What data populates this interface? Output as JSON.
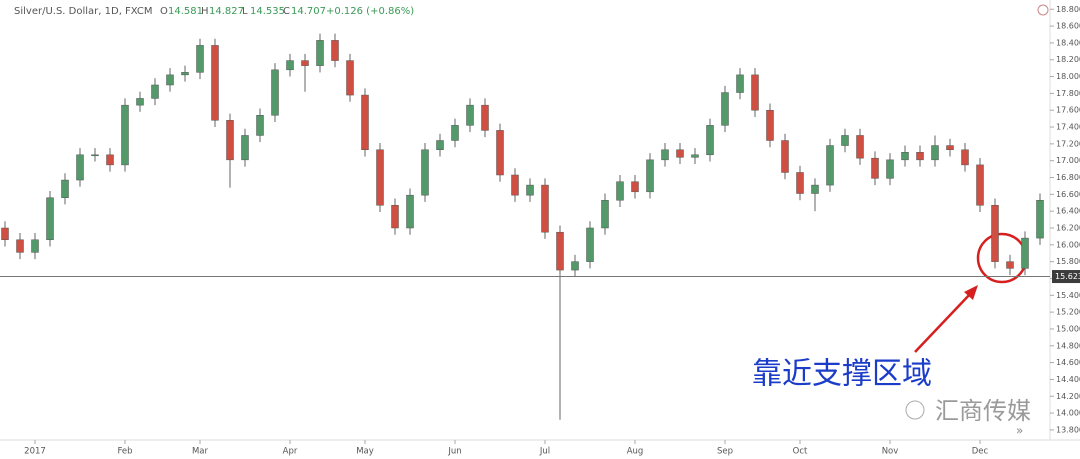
{
  "header": {
    "symbol": "Silver/U.S. Dollar, 1D, FXCM",
    "ohlc": [
      "O",
      "14.581",
      "H",
      "14.827",
      "L",
      "14.535",
      "C",
      "14.707"
    ],
    "change": "+0.126 (+0.86%)"
  },
  "chart_data": {
    "type": "candlestick",
    "up_color": "#53996a",
    "down_color": "#cf4f42",
    "categories": [
      null,
      null,
      "2017",
      null,
      null,
      null,
      null,
      null,
      "Feb",
      null,
      null,
      null,
      null,
      "Mar",
      null,
      null,
      null,
      null,
      null,
      "Apr",
      null,
      null,
      null,
      null,
      "May",
      null,
      null,
      null,
      null,
      null,
      "Jun",
      null,
      null,
      null,
      null,
      null,
      "Jul",
      null,
      null,
      null,
      null,
      null,
      "Aug",
      null,
      null,
      null,
      null,
      null,
      "Sep",
      null,
      null,
      null,
      null,
      "Oct",
      null,
      null,
      null,
      null,
      null,
      "Nov",
      null,
      null,
      null,
      null,
      null,
      "Dec",
      null,
      null,
      null,
      null
    ],
    "open": [
      16.2,
      16.06,
      15.91,
      16.06,
      16.56,
      16.77,
      17.07,
      17.07,
      16.95,
      17.66,
      17.74,
      17.9,
      18.02,
      18.05,
      18.37,
      17.48,
      17.01,
      17.3,
      17.54,
      18.08,
      18.19,
      18.13,
      18.43,
      18.19,
      17.78,
      17.13,
      16.47,
      16.2,
      16.59,
      17.13,
      17.24,
      17.42,
      17.66,
      17.36,
      16.83,
      16.59,
      16.71,
      16.15,
      15.7,
      15.8,
      16.2,
      16.53,
      16.75,
      16.63,
      17.01,
      17.13,
      17.04,
      17.07,
      17.42,
      17.81,
      18.02,
      17.6,
      17.24,
      16.86,
      16.61,
      16.71,
      17.18,
      17.3,
      17.03,
      16.79,
      17.01,
      17.1,
      17.01,
      17.18,
      17.13,
      16.95,
      16.47,
      15.8,
      15.72,
      16.08
    ],
    "high": [
      16.28,
      16.14,
      16.14,
      16.64,
      16.85,
      17.15,
      17.15,
      17.15,
      17.74,
      17.82,
      17.98,
      18.1,
      18.13,
      18.45,
      18.45,
      17.56,
      17.38,
      17.62,
      18.16,
      18.27,
      18.27,
      18.51,
      18.51,
      18.27,
      17.86,
      17.21,
      16.55,
      16.67,
      17.21,
      17.32,
      17.5,
      17.74,
      17.74,
      17.44,
      16.91,
      16.79,
      16.79,
      16.23,
      15.88,
      16.28,
      16.61,
      16.83,
      16.83,
      17.09,
      17.21,
      17.21,
      17.15,
      17.5,
      17.89,
      18.1,
      18.1,
      17.68,
      17.32,
      16.94,
      16.79,
      17.26,
      17.38,
      17.38,
      17.11,
      17.09,
      17.18,
      17.18,
      17.3,
      17.26,
      17.21,
      17.03,
      16.55,
      15.88,
      16.16,
      16.61
    ],
    "low": [
      15.98,
      15.83,
      15.83,
      15.98,
      16.48,
      16.69,
      16.99,
      16.87,
      16.87,
      17.58,
      17.66,
      17.82,
      17.94,
      17.97,
      17.4,
      16.68,
      16.93,
      17.22,
      17.46,
      18.0,
      17.82,
      18.05,
      18.11,
      17.7,
      17.05,
      16.39,
      16.12,
      16.12,
      16.51,
      17.05,
      17.16,
      17.34,
      17.28,
      16.75,
      16.51,
      16.51,
      16.07,
      13.92,
      15.62,
      15.72,
      16.12,
      16.45,
      16.55,
      16.55,
      16.93,
      16.96,
      16.96,
      16.99,
      17.34,
      17.73,
      17.52,
      17.16,
      16.78,
      16.53,
      16.4,
      16.63,
      17.1,
      16.95,
      16.71,
      16.71,
      16.93,
      16.93,
      16.93,
      17.05,
      16.87,
      16.39,
      15.72,
      15.64,
      15.64,
      16.0
    ],
    "close": [
      16.06,
      15.91,
      16.06,
      16.56,
      16.77,
      17.07,
      17.07,
      16.95,
      17.66,
      17.74,
      17.9,
      18.02,
      18.05,
      18.37,
      17.48,
      17.01,
      17.3,
      17.54,
      18.08,
      18.19,
      18.13,
      18.43,
      18.19,
      17.78,
      17.13,
      16.47,
      16.2,
      16.59,
      17.13,
      17.24,
      17.42,
      17.66,
      17.36,
      16.83,
      16.59,
      16.71,
      16.15,
      15.7,
      15.8,
      16.2,
      16.53,
      16.75,
      16.63,
      17.01,
      17.13,
      17.04,
      17.07,
      17.42,
      17.81,
      18.02,
      17.6,
      17.24,
      16.86,
      16.61,
      16.71,
      17.18,
      17.3,
      17.03,
      16.79,
      17.01,
      17.1,
      17.01,
      17.18,
      17.13,
      16.95,
      16.47,
      15.8,
      15.72,
      16.08,
      16.53
    ],
    "ylim": [
      13.68,
      18.91
    ],
    "yticks": [
      {
        "value": 13.8,
        "label": "13.800"
      },
      {
        "value": 14.0,
        "label": "14.000"
      },
      {
        "value": 14.2,
        "label": "14.200"
      },
      {
        "value": 14.4,
        "label": "14.400"
      },
      {
        "value": 14.6,
        "label": "14.600"
      },
      {
        "value": 14.8,
        "label": "14.800"
      },
      {
        "value": 15.0,
        "label": "15.000"
      },
      {
        "value": 15.2,
        "label": "15.200"
      },
      {
        "value": 15.4,
        "label": "15.400"
      },
      {
        "value": 15.6,
        "label": "15.600"
      },
      {
        "value": 15.8,
        "label": "15.800"
      },
      {
        "value": 16.0,
        "label": "16.000"
      },
      {
        "value": 16.2,
        "label": "16.200"
      },
      {
        "value": 16.4,
        "label": "16.400"
      },
      {
        "value": 16.6,
        "label": "16.600"
      },
      {
        "value": 16.8,
        "label": "16.800"
      },
      {
        "value": 17.0,
        "label": "17.000"
      },
      {
        "value": 17.2,
        "label": "17.200"
      },
      {
        "value": 17.4,
        "label": "17.400"
      },
      {
        "value": 17.6,
        "label": "17.600"
      },
      {
        "value": 17.8,
        "label": "17.800"
      },
      {
        "value": 18.0,
        "label": "18.000"
      },
      {
        "value": 18.2,
        "label": "18.200"
      },
      {
        "value": 18.4,
        "label": "18.400"
      },
      {
        "value": 18.6,
        "label": "18.600"
      },
      {
        "value": 18.8,
        "label": "18.800"
      }
    ],
    "support_line": {
      "value": 15.623,
      "label": "15.623"
    },
    "grid": false,
    "annotation": "靠近支撑区域",
    "watermark": "汇商传媒"
  }
}
